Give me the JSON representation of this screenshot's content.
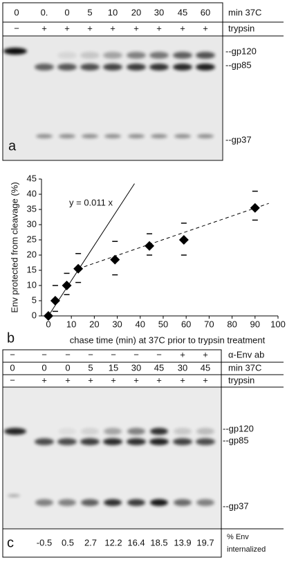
{
  "panel_a": {
    "letter": "a",
    "lane_times": [
      "0",
      "0.",
      "0",
      "5",
      "10",
      "20",
      "30",
      "45",
      "60"
    ],
    "time_label": "min 37C",
    "trypsin": [
      "−",
      "+",
      "+",
      "+",
      "+",
      "+",
      "+",
      "+",
      "+"
    ],
    "trypsin_label": "trypsin",
    "bands": [
      "--gp120",
      "--gp85",
      "--gp37"
    ]
  },
  "chart_data": {
    "type": "scatter",
    "letter": "b",
    "x_label": "chase time (min) at 37C prior to trypsin treatment",
    "y_label": "Env protected from cleavage (%)",
    "x": [
      0,
      3,
      8,
      13,
      29,
      44,
      59,
      90
    ],
    "values": [
      0,
      5,
      10,
      15.5,
      18.5,
      23,
      25,
      35.5
    ],
    "upper": [
      null,
      10,
      14,
      20.5,
      24.5,
      27,
      30.5,
      41
    ],
    "lower": [
      null,
      1.5,
      7,
      11,
      13.5,
      20,
      20,
      31.5
    ],
    "color": "#000000",
    "xlim": [
      -3,
      100
    ],
    "xticks": [
      0,
      10,
      20,
      30,
      40,
      50,
      60,
      70,
      80,
      90,
      100
    ],
    "ylim": [
      0,
      45
    ],
    "yticks": [
      0,
      5,
      10,
      15,
      20,
      25,
      30,
      35,
      40,
      45
    ],
    "fit": {
      "label": "y = 0.011 x",
      "x": [
        0,
        37.5
      ],
      "y": [
        0,
        43.5
      ]
    },
    "trend": {
      "x": [
        13,
        96
      ],
      "y": [
        15.5,
        37
      ]
    }
  },
  "panel_c": {
    "letter": "c",
    "antibody": [
      "−",
      "−",
      "−",
      "−",
      "−",
      "−",
      "−",
      "+",
      "+"
    ],
    "antibody_label": "α-Env ab",
    "lane_times": [
      "0",
      "0",
      "0",
      "5",
      "15",
      "30",
      "45",
      "30",
      "45"
    ],
    "time_label": "min 37C",
    "trypsin": [
      "−",
      "+",
      "+",
      "+",
      "+",
      "+",
      "+",
      "+",
      "+"
    ],
    "trypsin_label": "trypsin",
    "bands": [
      "--gp120",
      "--gp85",
      "--gp37"
    ],
    "internalized": [
      -0.5,
      0.5,
      2.7,
      12.2,
      16.4,
      18.5,
      13.9,
      19.7
    ],
    "internalized_label": [
      "% Env",
      "internalized"
    ]
  }
}
